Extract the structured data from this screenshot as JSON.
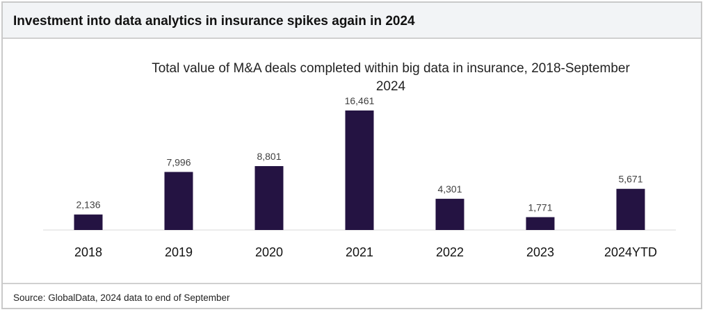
{
  "header": {
    "title": "Investment into data analytics in insurance spikes again in 2024"
  },
  "footer": {
    "source": "Source: GlobalData, 2024 data to end of September"
  },
  "chart_data": {
    "type": "bar",
    "title_lines": [
      "Total value of M&A deals completed within big data in insurance, 2018-September",
      "2024"
    ],
    "categories": [
      "2018",
      "2019",
      "2020",
      "2021",
      "2022",
      "2023",
      "2024YTD"
    ],
    "values": [
      2136,
      7996,
      8801,
      16461,
      4301,
      1771,
      5671
    ],
    "data_labels": [
      "2,136",
      "7,996",
      "8,801",
      "16,461",
      "4,301",
      "1,771",
      "5,671"
    ],
    "xlabel": "",
    "ylabel": "",
    "ylim": [
      0,
      16461
    ],
    "grid": false,
    "bar_color": "#241342"
  }
}
